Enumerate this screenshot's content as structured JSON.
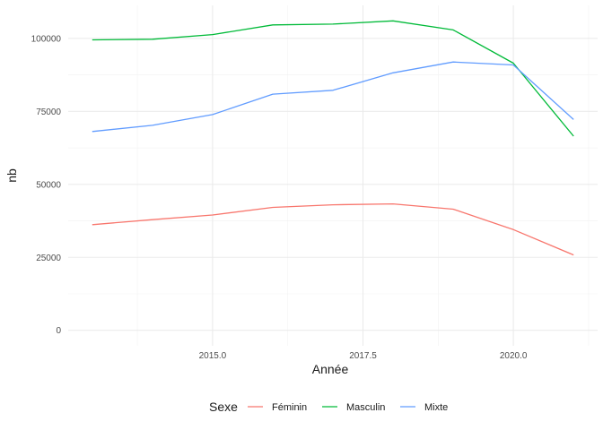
{
  "chart_data": {
    "type": "line",
    "x": [
      2013,
      2014,
      2015,
      2016,
      2017,
      2018,
      2019,
      2020,
      2021
    ],
    "series": [
      {
        "name": "Féminin",
        "color": "#F8766D",
        "values": [
          36200,
          37900,
          39500,
          42100,
          43000,
          43300,
          41500,
          34500,
          25800
        ]
      },
      {
        "name": "Masculin",
        "color": "#00BA38",
        "values": [
          99500,
          99700,
          101300,
          104600,
          104900,
          106000,
          102900,
          91500,
          66500
        ]
      },
      {
        "name": "Mixte",
        "color": "#619CFF",
        "values": [
          68100,
          70200,
          73900,
          80900,
          82200,
          88200,
          91900,
          90900,
          72200
        ]
      }
    ],
    "xlabel": "Année",
    "ylabel": "nb",
    "x_ticks": [
      "2015.0",
      "2017.5",
      "2020.0"
    ],
    "y_ticks": [
      "0",
      "25000",
      "50000",
      "75000",
      "100000"
    ],
    "xlim": [
      2012.6,
      2021.4
    ],
    "ylim": [
      -5300,
      111300
    ],
    "legend_title": "Sexe",
    "legend_position": "bottom",
    "grid": true
  }
}
